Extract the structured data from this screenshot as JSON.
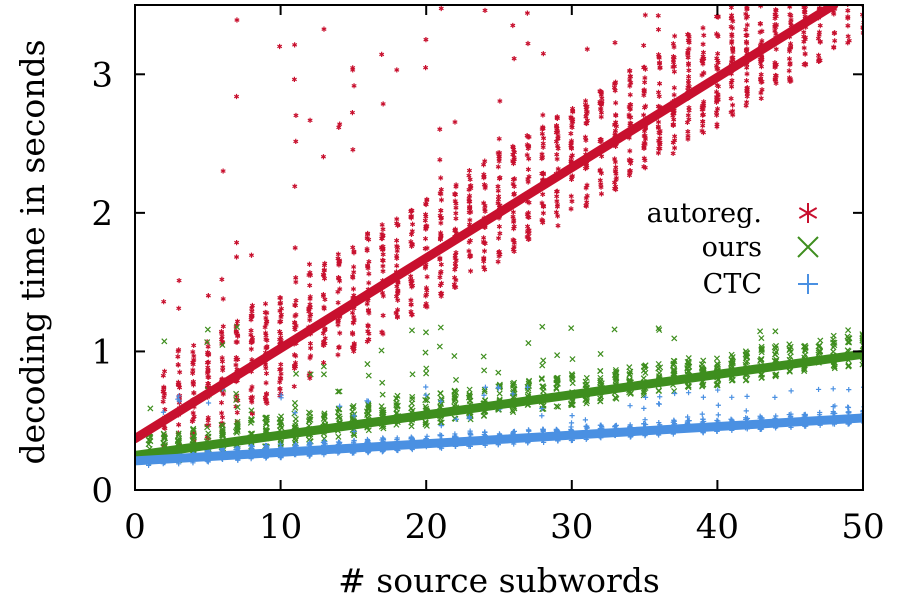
{
  "chart_data": {
    "type": "scatter",
    "xlabel": "# source subwords",
    "ylabel": "decoding time in seconds",
    "xlim": [
      0,
      50
    ],
    "ylim": [
      0,
      3.5
    ],
    "xticks": [
      0,
      10,
      20,
      30,
      40,
      50
    ],
    "yticks": [
      0,
      1,
      2,
      3
    ],
    "grid": false,
    "legend_position": "right, middle",
    "series": [
      {
        "name": "autoreg.",
        "marker": "star",
        "color": "#C8102E",
        "fit_line": {
          "x": [
            0,
            48
          ],
          "y": [
            0.37,
            3.5
          ]
        },
        "scatter": {
          "x_min": 2,
          "x_max": 50,
          "slope": 0.065,
          "intercept": 0.37,
          "spread_low": 0.35,
          "spread_high": 0.45,
          "outliers_high_max": 3.5,
          "points_per_x": 30
        }
      },
      {
        "name": "ours",
        "marker": "x",
        "color": "#3E8E1E",
        "fit_line": {
          "x": [
            0,
            50
          ],
          "y": [
            0.25,
            0.98
          ]
        },
        "scatter": {
          "x_min": 1,
          "x_max": 50,
          "slope": 0.0146,
          "intercept": 0.25,
          "spread_low": 0.08,
          "spread_high": 0.15,
          "outliers_high_max": 1.2,
          "points_per_x": 18
        }
      },
      {
        "name": "CTC",
        "marker": "plus",
        "color": "#4A90E2",
        "fit_line": {
          "x": [
            0,
            50
          ],
          "y": [
            0.21,
            0.52
          ]
        },
        "scatter": {
          "x_min": 1,
          "x_max": 50,
          "slope": 0.0062,
          "intercept": 0.21,
          "spread_low": 0.04,
          "spread_high": 0.06,
          "outliers_high_max": 0.75,
          "points_per_x": 16
        }
      }
    ]
  }
}
